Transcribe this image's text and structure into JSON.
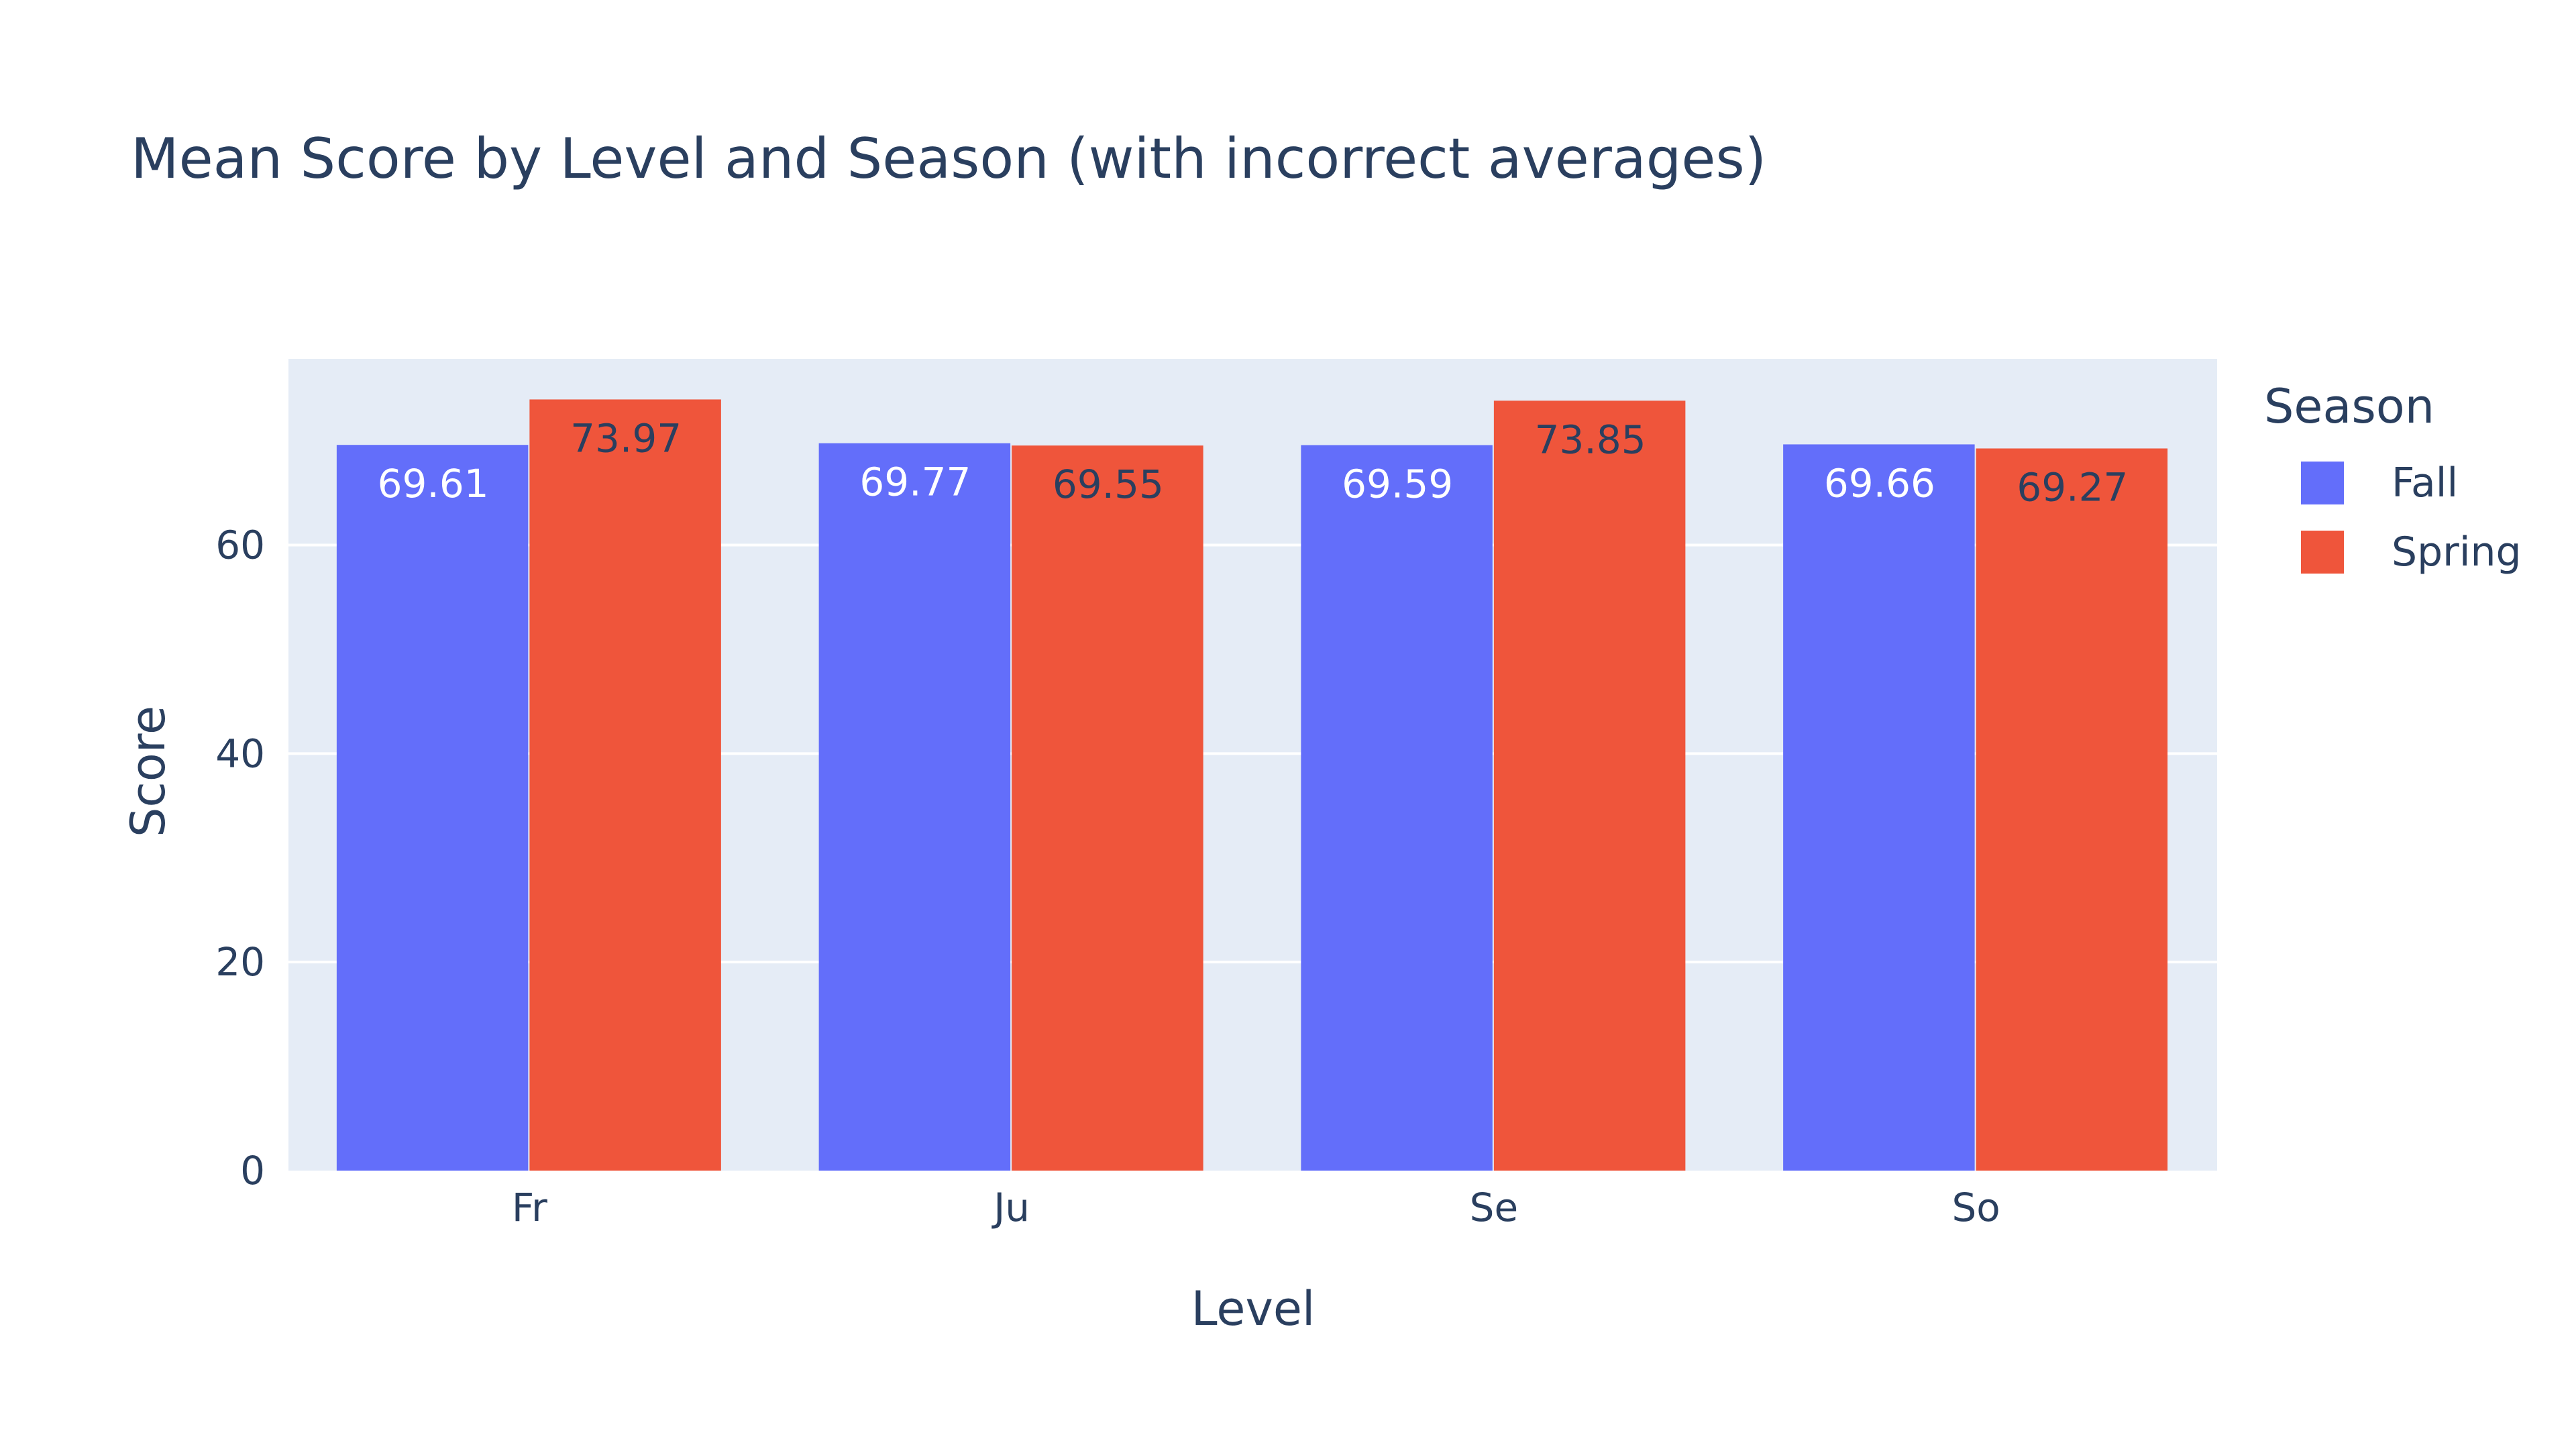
{
  "chart_data": {
    "type": "bar",
    "title": "Mean Score by Level and Season (with incorrect averages)",
    "xlabel": "Level",
    "ylabel": "Score",
    "categories": [
      "Fr",
      "Ju",
      "Se",
      "So"
    ],
    "series": [
      {
        "name": "Fall",
        "values": [
          69.61,
          69.77,
          69.59,
          69.66
        ],
        "labels": [
          "69.61",
          "69.77",
          "69.59",
          "69.66"
        ],
        "color": "#636efa",
        "label_color": "#ffffff"
      },
      {
        "name": "Spring",
        "values": [
          73.97,
          69.55,
          73.85,
          69.27
        ],
        "labels": [
          "73.97",
          "69.55",
          "73.85",
          "69.27"
        ],
        "color": "#ef553b",
        "label_color": "#2a3f5f"
      }
    ],
    "ylim": [
      0,
      77.86
    ],
    "yticks": [
      0,
      20,
      40,
      60
    ],
    "ytick_labels": [
      "0",
      "20",
      "40",
      "60"
    ],
    "grid": true,
    "plot_background": "#e5ecf6",
    "legend": {
      "title": "Season",
      "placement": "right-top"
    }
  }
}
